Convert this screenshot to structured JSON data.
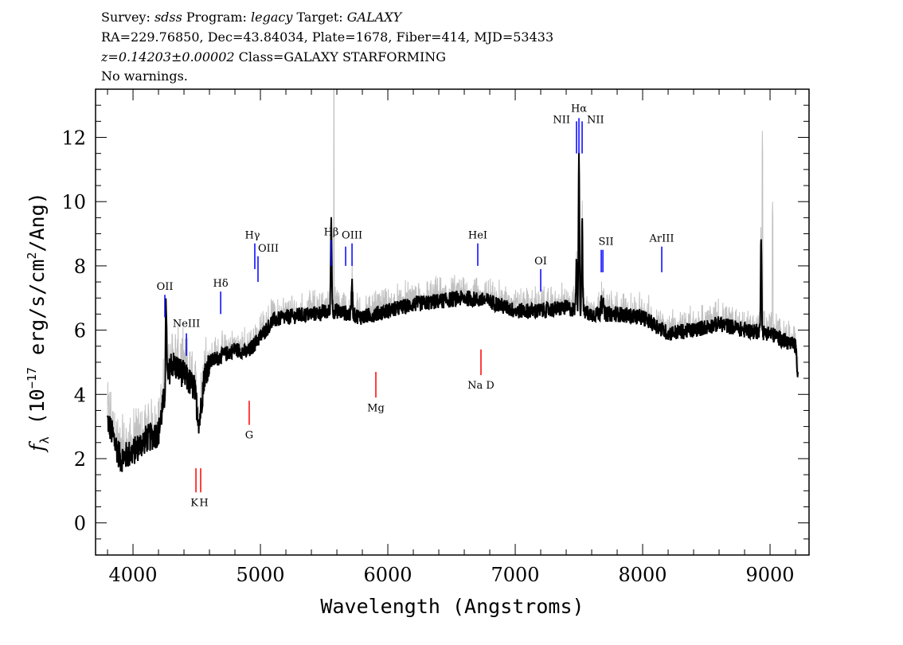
{
  "header": {
    "line1": {
      "survey_label": "Survey: ",
      "survey": "sdss",
      "program_label": " Program: ",
      "program": "legacy",
      "target_label": " Target: ",
      "target": "GALAXY"
    },
    "line2": "RA=229.76850, Dec=43.84034, Plate=1678, Fiber=414, MJD=53433",
    "line3": {
      "z": "z=0.14203±0.00002",
      "class": " Class=GALAXY STARFORMING"
    },
    "line4": "No warnings."
  },
  "chart_data": {
    "type": "line",
    "xlabel": "Wavelength (Angstroms)",
    "ylabel": "f_λ (10^-17 erg/s/cm^2/Ang)",
    "ylabel_parts": {
      "f": "f",
      "sub": "λ",
      "a": " (10",
      "exp": "−17",
      "b": " erg/s/cm",
      "exp2": "2",
      "c": "/Ang)"
    },
    "xlim": [
      3706,
      9306
    ],
    "ylim": [
      -1,
      13.5
    ],
    "xticks": [
      "4000",
      "5000",
      "6000",
      "7000",
      "8000",
      "9000"
    ],
    "yticks": [
      "0",
      "2",
      "4",
      "6",
      "8",
      "10",
      "12"
    ],
    "grid": false,
    "colors": {
      "smoothed": "#000000",
      "raw": "#c0c0c0",
      "emission": "#0000ff",
      "absorption": "#ff0000"
    },
    "series": [
      {
        "role": "smoothed flux",
        "continuum": [
          [
            3800,
            3.2
          ],
          [
            3900,
            2.0
          ],
          [
            4000,
            2.2
          ],
          [
            4100,
            2.6
          ],
          [
            4200,
            2.8
          ],
          [
            4250,
            4.0
          ],
          [
            4300,
            5.0
          ],
          [
            4400,
            4.6
          ],
          [
            4480,
            4.2
          ],
          [
            4520,
            3.1
          ],
          [
            4560,
            4.6
          ],
          [
            4600,
            5.0
          ],
          [
            4700,
            5.2
          ],
          [
            4800,
            5.4
          ],
          [
            4900,
            5.3
          ],
          [
            5000,
            5.8
          ],
          [
            5100,
            6.3
          ],
          [
            5200,
            6.4
          ],
          [
            5400,
            6.5
          ],
          [
            5600,
            6.6
          ],
          [
            5800,
            6.4
          ],
          [
            6000,
            6.6
          ],
          [
            6200,
            6.8
          ],
          [
            6400,
            6.9
          ],
          [
            6600,
            7.0
          ],
          [
            6800,
            6.9
          ],
          [
            7000,
            6.6
          ],
          [
            7200,
            6.6
          ],
          [
            7400,
            6.7
          ],
          [
            7600,
            6.5
          ],
          [
            7800,
            6.5
          ],
          [
            8000,
            6.4
          ],
          [
            8200,
            5.9
          ],
          [
            8400,
            6.0
          ],
          [
            8600,
            6.2
          ],
          [
            8800,
            6.0
          ],
          [
            9000,
            5.9
          ],
          [
            9200,
            5.5
          ],
          [
            9220,
            4.5
          ]
        ],
        "peaks": [
          [
            4260,
            6.9
          ],
          [
            5556,
            9.5
          ],
          [
            5719,
            7.6
          ],
          [
            7481,
            8.3
          ],
          [
            7500,
            11.3
          ],
          [
            7525,
            9.4
          ],
          [
            7675,
            7.2
          ],
          [
            7688,
            7.0
          ],
          [
            8930,
            9.0
          ]
        ]
      },
      {
        "role": "raw flux",
        "peaks": [
          [
            5577,
            13.5
          ],
          [
            8940,
            12.2
          ],
          [
            7500,
            11.8
          ],
          [
            9020,
            10.0
          ]
        ]
      }
    ],
    "lines": [
      {
        "label": "OII",
        "wavelength": 4250,
        "type": "emission",
        "y": [
          6.4,
          7.1
        ]
      },
      {
        "label": "NeIII",
        "wavelength": 4419,
        "type": "emission",
        "y": [
          5.2,
          5.9
        ]
      },
      {
        "label": "Hδ",
        "wavelength": 4688,
        "type": "emission",
        "y": [
          6.5,
          7.2
        ]
      },
      {
        "label": "Hγ",
        "wavelength": 4956,
        "type": "emission",
        "y": [
          7.9,
          8.7
        ]
      },
      {
        "label": "OIII",
        "wavelength": 4981,
        "type": "emission",
        "y": [
          7.5,
          8.3
        ]
      },
      {
        "label": "Hβ",
        "wavelength": 5556,
        "type": "emission",
        "y": [
          8.0,
          8.8
        ]
      },
      {
        "label": "",
        "wavelength": 5669,
        "type": "emission",
        "y": [
          8.0,
          8.6
        ]
      },
      {
        "label": "OIII",
        "wavelength": 5719,
        "type": "emission",
        "y": [
          8.0,
          8.7
        ]
      },
      {
        "label": "HeI",
        "wavelength": 6706,
        "type": "emission",
        "y": [
          8.0,
          8.7
        ]
      },
      {
        "label": "OI",
        "wavelength": 7200,
        "type": "emission",
        "y": [
          7.2,
          7.9
        ]
      },
      {
        "label": "NII",
        "wavelength": 7481,
        "type": "emission",
        "y": [
          11.5,
          12.5
        ]
      },
      {
        "label": "Hα",
        "wavelength": 7500,
        "type": "emission",
        "y": [
          11.5,
          12.6
        ]
      },
      {
        "label": "NII",
        "wavelength": 7525,
        "type": "emission",
        "y": [
          11.5,
          12.5
        ]
      },
      {
        "label": "SII",
        "wavelength": 7675,
        "type": "emission",
        "y": [
          7.8,
          8.5
        ]
      },
      {
        "label": "",
        "wavelength": 7688,
        "type": "emission",
        "y": [
          7.8,
          8.5
        ]
      },
      {
        "label": "ArIII",
        "wavelength": 8150,
        "type": "emission",
        "y": [
          7.8,
          8.6
        ]
      },
      {
        "label": "K",
        "wavelength": 4494,
        "type": "absorption",
        "y": [
          0.95,
          1.7
        ]
      },
      {
        "label": "H",
        "wavelength": 4531,
        "type": "absorption",
        "y": [
          0.95,
          1.7
        ]
      },
      {
        "label": "G",
        "wavelength": 4912,
        "type": "absorption",
        "y": [
          3.05,
          3.8
        ]
      },
      {
        "label": "Mg",
        "wavelength": 5906,
        "type": "absorption",
        "y": [
          3.9,
          4.7
        ]
      },
      {
        "label": "Na D",
        "wavelength": 6731,
        "type": "absorption",
        "y": [
          4.6,
          5.4
        ]
      }
    ]
  }
}
